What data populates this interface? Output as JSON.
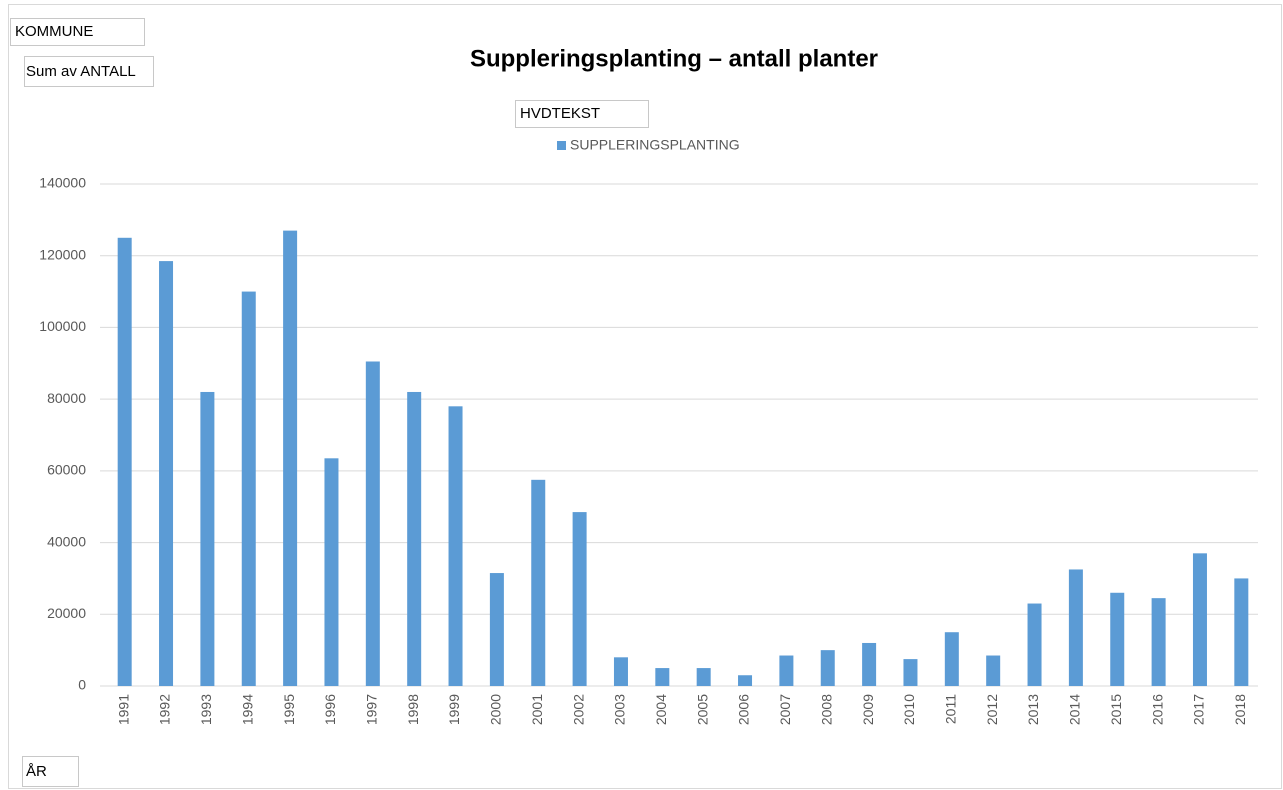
{
  "chart_data": {
    "type": "bar",
    "title": "Suppleringsplanting – antall planter",
    "filter_button": "KOMMUNE",
    "value_button": "Sum av ANTALL",
    "legend_title": "HVDTEKST",
    "xlabel": "ÅR",
    "categories": [
      "1991",
      "1992",
      "1993",
      "1994",
      "1995",
      "1996",
      "1997",
      "1998",
      "1999",
      "2000",
      "2001",
      "2002",
      "2003",
      "2004",
      "2005",
      "2006",
      "2007",
      "2008",
      "2009",
      "2010",
      "2011",
      "2012",
      "2013",
      "2014",
      "2015",
      "2016",
      "2017",
      "2018"
    ],
    "series": [
      {
        "name": "SUPPLERINGSPLANTING",
        "color": "#5b9bd5",
        "values": [
          125000,
          118500,
          82000,
          110000,
          127000,
          63500,
          90500,
          82000,
          78000,
          31500,
          57500,
          48500,
          8000,
          5000,
          5000,
          3000,
          8500,
          10000,
          12000,
          7500,
          15000,
          8500,
          23000,
          32500,
          26000,
          24500,
          37000,
          30000
        ]
      }
    ],
    "ylim": [
      0,
      140000
    ],
    "yticks": [
      0,
      20000,
      40000,
      60000,
      80000,
      100000,
      120000,
      140000
    ],
    "grid": true
  }
}
